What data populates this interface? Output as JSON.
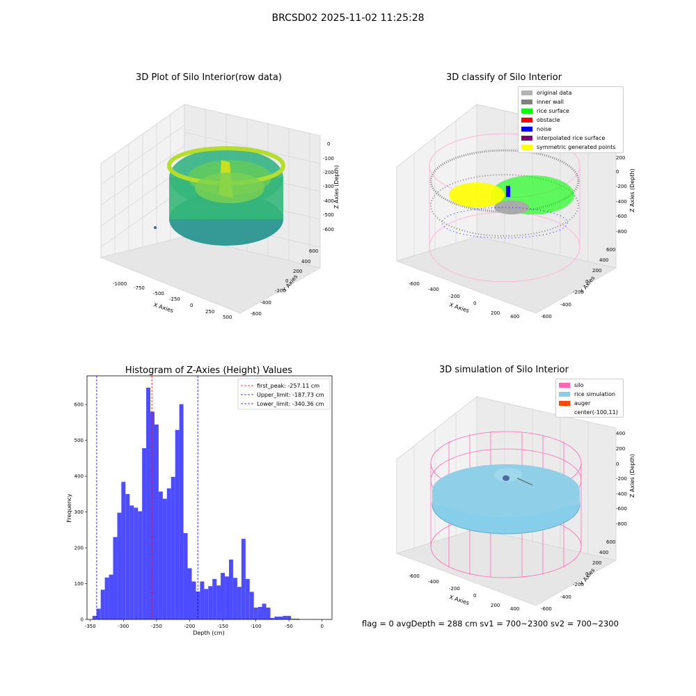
{
  "suptitle": "BRCSD02 2025-11-02 11:25:28",
  "panels": {
    "raw": {
      "title": "3D Plot of Silo Interior(row data)",
      "xlabel": "X Axies",
      "ylabel": "Y Axies",
      "zlabel": "Z Axies (Depth)",
      "xticks": [
        "-1000",
        "-750",
        "-500",
        "-250",
        "0",
        "250",
        "500"
      ],
      "yticks": [
        "600",
        "400",
        "200",
        "0",
        "-200",
        "-400",
        "-600"
      ],
      "zticks": [
        "0",
        "-100",
        "-200",
        "-300",
        "-400",
        "-500",
        "-600"
      ]
    },
    "classify": {
      "title": "3D classify of Silo Interior",
      "xlabel": "X Axies",
      "ylabel": "Y Axies",
      "zlabel": "Z Axies (Depth)",
      "xticks": [
        "-600",
        "-400",
        "-200",
        "0",
        "200",
        "400"
      ],
      "yticks": [
        "600",
        "400",
        "200",
        "0",
        "-200",
        "-400",
        "-600"
      ],
      "zticks": [
        "200",
        "0",
        "-200",
        "-400",
        "-600",
        "-800"
      ],
      "legend": [
        {
          "label": "original data",
          "color": "#b3b3b3"
        },
        {
          "label": "inner wall",
          "color": "#808080"
        },
        {
          "label": "rice surface",
          "color": "#00ff00"
        },
        {
          "label": "obstacle",
          "color": "#ff0000"
        },
        {
          "label": "noise",
          "color": "#0000ff"
        },
        {
          "label": "interpolated rice surface",
          "color": "#800080"
        },
        {
          "label": "symmetric generated points",
          "color": "#ffff00"
        }
      ]
    },
    "simulation": {
      "title": "3D simulation of Silo Interior",
      "xlabel": "X Axies",
      "ylabel": "Y Axies",
      "zlabel": "Z Axies (Depth)",
      "xticks": [
        "-600",
        "-400",
        "-200",
        "0",
        "200",
        "400"
      ],
      "yticks": [
        "600",
        "400",
        "200",
        "0",
        "-200",
        "-400",
        "-600"
      ],
      "zticks": [
        "400",
        "200",
        "0",
        "-200",
        "-400",
        "-600",
        "-800"
      ],
      "legend": [
        {
          "label": "silo",
          "color": "#ff69b4"
        },
        {
          "label": "rice simulation",
          "color": "#87ceeb"
        },
        {
          "label": "auger",
          "color": "#ff4500"
        },
        {
          "label": "center(-100,11)",
          "color": ""
        }
      ]
    }
  },
  "footer": "flag = 0     avgDepth = 288 cm  sv1 = 700~2300  sv2 = 700~2300",
  "chart_data": {
    "type": "bar",
    "title": "Histogram of Z-Axies (Height) Values",
    "xlabel": "Depth (cm)",
    "ylabel": "Frequency",
    "xlim": [
      -355,
      15
    ],
    "ylim": [
      0,
      680
    ],
    "xticks": [
      -350,
      -300,
      -250,
      -200,
      -150,
      -100,
      -50,
      0
    ],
    "yticks": [
      0,
      100,
      200,
      300,
      400,
      500,
      600
    ],
    "bin_width": 6.25,
    "bin_starts": [
      -346.8,
      -340.6,
      -334.3,
      -328.1,
      -321.8,
      -315.6,
      -309.3,
      -303.1,
      -296.8,
      -290.6,
      -284.3,
      -278.1,
      -271.8,
      -265.6,
      -259.3,
      -253.1,
      -246.8,
      -240.6,
      -234.3,
      -228.1,
      -221.8,
      -215.6,
      -209.3,
      -203.1,
      -196.8,
      -190.6,
      -184.3,
      -178.1,
      -171.8,
      -165.6,
      -159.3,
      -153.1,
      -146.8,
      -140.6,
      -134.3,
      -128.1,
      -121.8,
      -115.6,
      -109.3,
      -103.1,
      -96.8,
      -90.6,
      -84.3,
      -78.1,
      -71.8,
      -65.6,
      -59.3,
      -53.1,
      -46.8,
      -40.6,
      -34.3,
      -28.1,
      -21.8,
      -15.6,
      -9.3,
      -3.1
    ],
    "values": [
      10,
      30,
      83,
      117,
      125,
      230,
      298,
      384,
      350,
      318,
      312,
      302,
      478,
      647,
      580,
      544,
      357,
      337,
      366,
      398,
      529,
      601,
      241,
      143,
      106,
      78,
      106,
      85,
      93,
      113,
      95,
      130,
      120,
      167,
      116,
      91,
      225,
      113,
      77,
      33,
      35,
      44,
      33,
      4,
      8,
      8,
      10,
      10,
      2,
      2,
      0,
      0,
      0,
      0,
      0,
      0
    ],
    "lines": [
      {
        "label": "first_peak: -257.11 cm",
        "x": -257.11,
        "color": "#ff0000"
      },
      {
        "label": "Upper_limit: -187.73 cm",
        "x": -187.73,
        "color": "#0000ff"
      },
      {
        "label": "Lower_limit: -340.36 cm",
        "x": -340.36,
        "color": "#0000ff"
      }
    ],
    "bar_color": "#4d4dff",
    "legend_position": "top-right"
  }
}
